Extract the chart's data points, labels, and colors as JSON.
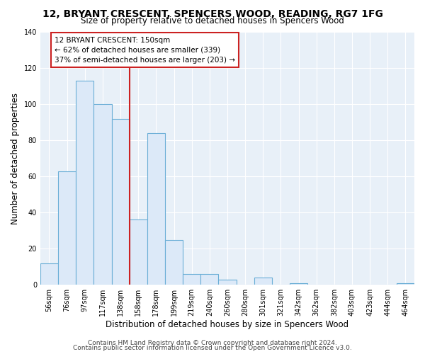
{
  "title": "12, BRYANT CRESCENT, SPENCERS WOOD, READING, RG7 1FG",
  "subtitle": "Size of property relative to detached houses in Spencers Wood",
  "xlabel": "Distribution of detached houses by size in Spencers Wood",
  "ylabel": "Number of detached properties",
  "bar_labels": [
    "56sqm",
    "76sqm",
    "97sqm",
    "117sqm",
    "138sqm",
    "158sqm",
    "178sqm",
    "199sqm",
    "219sqm",
    "240sqm",
    "260sqm",
    "280sqm",
    "301sqm",
    "321sqm",
    "342sqm",
    "362sqm",
    "382sqm",
    "403sqm",
    "423sqm",
    "444sqm",
    "464sqm"
  ],
  "bar_values": [
    12,
    63,
    113,
    100,
    92,
    36,
    84,
    25,
    6,
    6,
    3,
    0,
    4,
    0,
    1,
    0,
    0,
    0,
    0,
    0,
    1
  ],
  "bar_color": "#dce9f8",
  "bar_edge_color": "#6aaed6",
  "vline_x_label": "158sqm",
  "vline_x_index": 5,
  "vline_color": "#cc2222",
  "ylim": [
    0,
    140
  ],
  "yticks": [
    0,
    20,
    40,
    60,
    80,
    100,
    120,
    140
  ],
  "annotation_title": "12 BRYANT CRESCENT: 150sqm",
  "annotation_line1": "← 62% of detached houses are smaller (339)",
  "annotation_line2": "37% of semi-detached houses are larger (203) →",
  "annotation_box_color": "#ffffff",
  "annotation_box_edge": "#cc2222",
  "plot_bg_color": "#e8f0f8",
  "fig_bg_color": "#ffffff",
  "grid_color": "#ffffff",
  "footer1": "Contains HM Land Registry data © Crown copyright and database right 2024.",
  "footer2": "Contains public sector information licensed under the Open Government Licence v3.0.",
  "title_fontsize": 10,
  "subtitle_fontsize": 8.5,
  "axis_label_fontsize": 8.5,
  "tick_fontsize": 7,
  "annot_fontsize": 7.5,
  "footer_fontsize": 6.5
}
